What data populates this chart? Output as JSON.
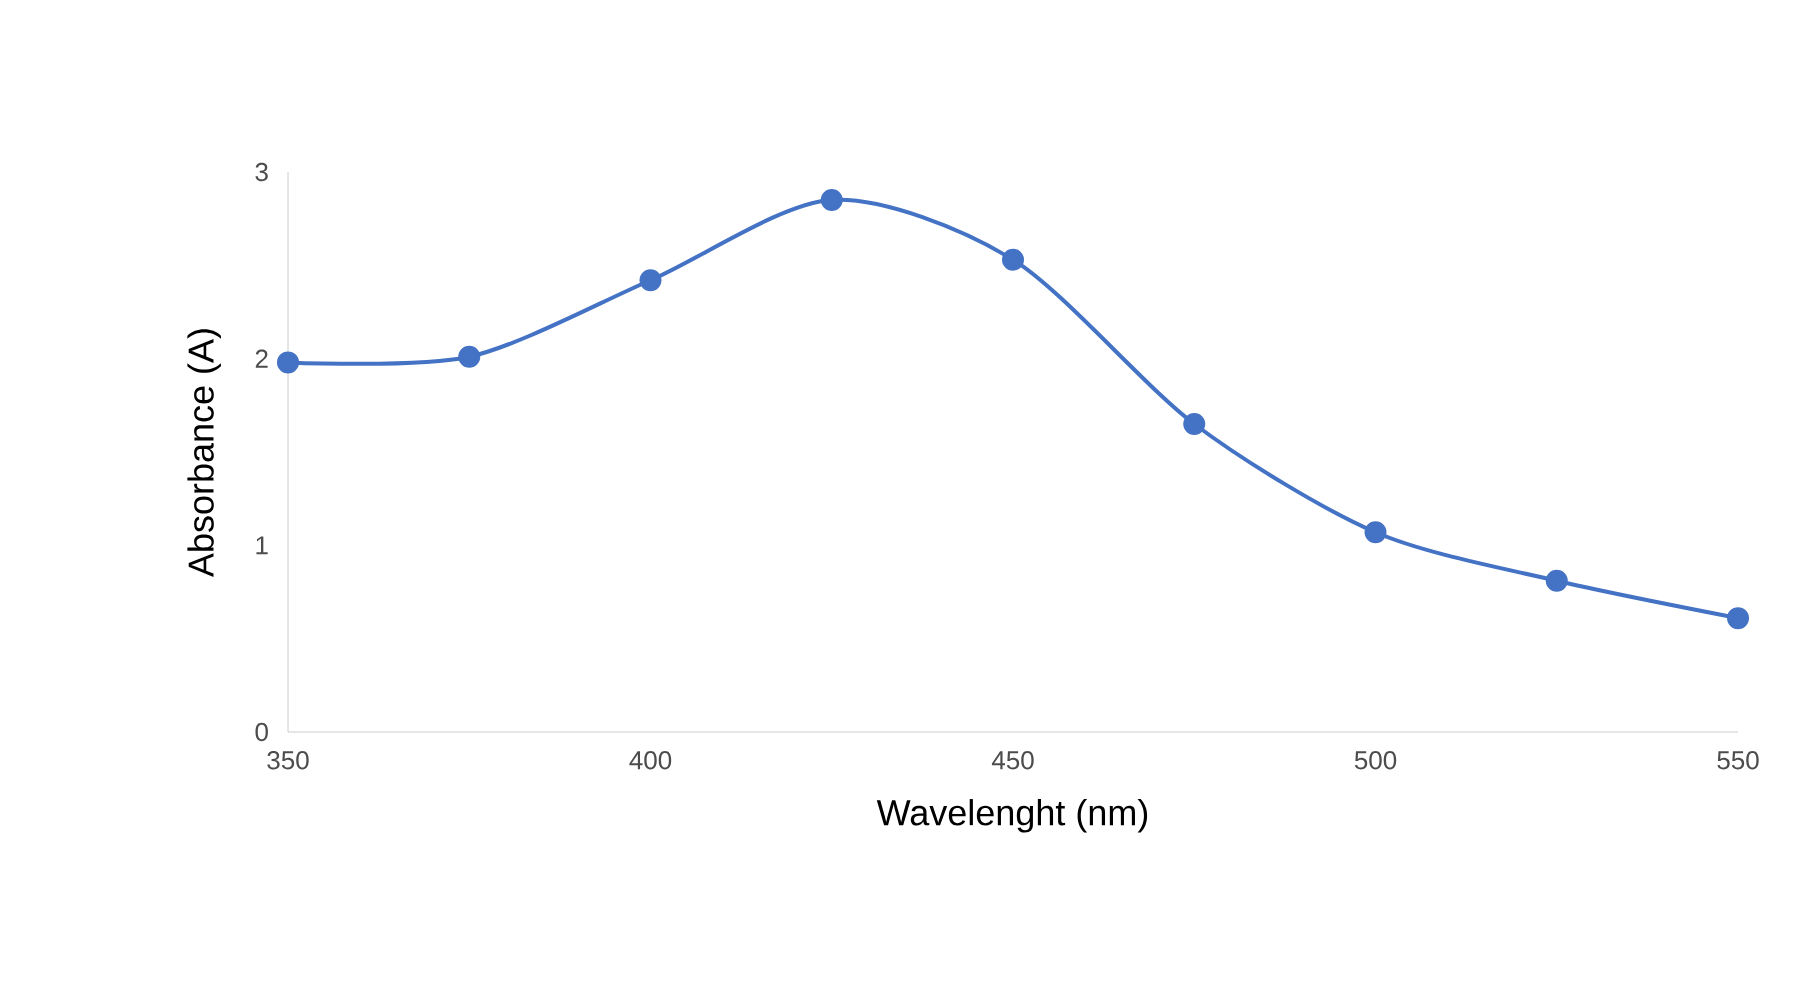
{
  "chart_data": {
    "type": "line",
    "xlabel": "Wavelenght (nm)",
    "ylabel": "Absorbance (A)",
    "x": [
      350,
      375,
      400,
      425,
      450,
      475,
      500,
      525,
      550
    ],
    "series": [
      {
        "color": "#4472c4",
        "values": [
          1.98,
          2.01,
          2.42,
          2.85,
          2.53,
          1.65,
          1.07,
          0.81,
          0.61
        ]
      }
    ],
    "xlim": [
      350,
      550
    ],
    "ylim": [
      0,
      3
    ],
    "xticks": [
      350,
      400,
      450,
      500,
      550
    ],
    "yticks": [
      0,
      1,
      2,
      3
    ],
    "grid": false,
    "marker": "circle",
    "line_style": "solid"
  }
}
